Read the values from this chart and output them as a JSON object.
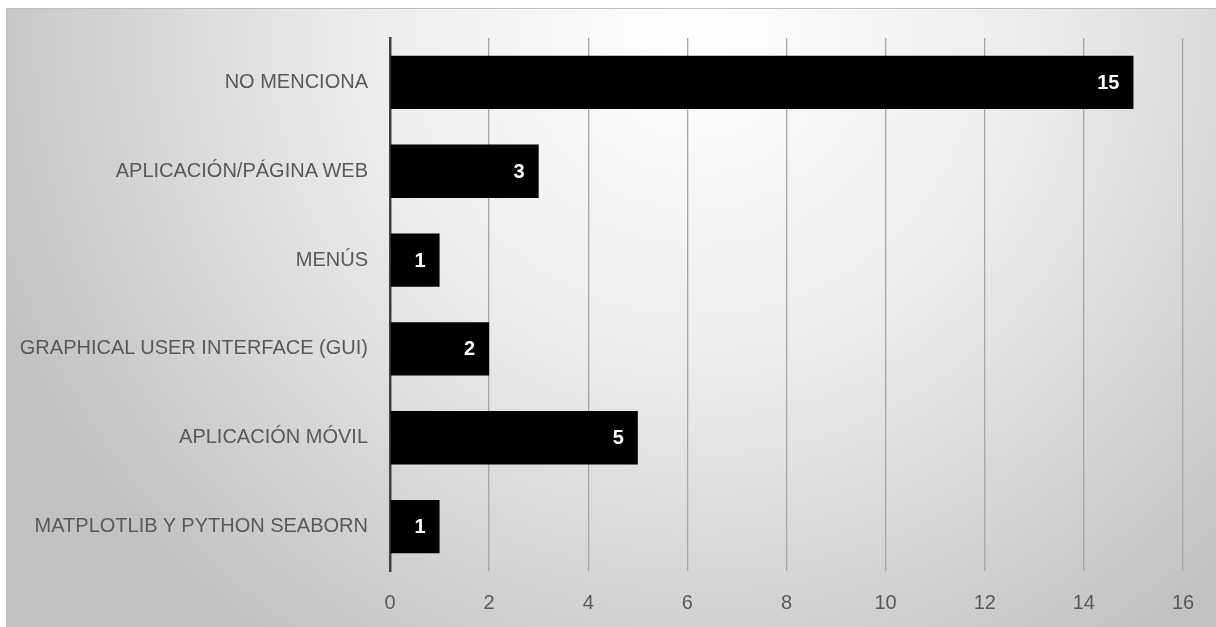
{
  "chart_data": {
    "type": "bar",
    "orientation": "horizontal",
    "categories": [
      "NO MENCIONA",
      "APLICACIÓN/PÁGINA WEB",
      "MENÚS",
      "GRAPHICAL USER INTERFACE (GUI)",
      "APLICACIÓN MÓVIL",
      "MATPLOTLIB Y PYTHON SEABORN"
    ],
    "values": [
      15,
      3,
      1,
      2,
      5,
      1
    ],
    "color": "#000000",
    "xlim": [
      0,
      16
    ],
    "xticks": [
      0,
      2,
      4,
      6,
      8,
      10,
      12,
      14,
      16
    ],
    "grid": "x",
    "data_labels": true
  }
}
